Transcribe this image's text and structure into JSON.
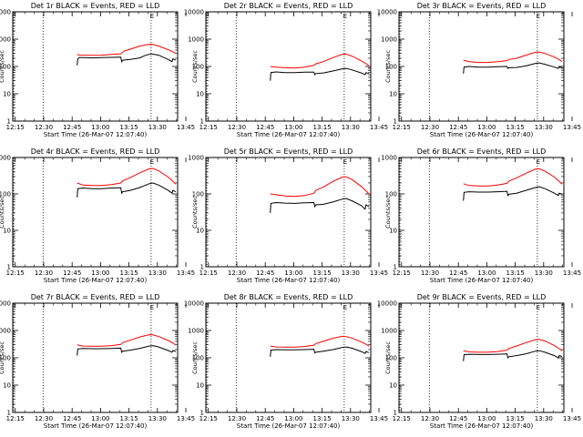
{
  "figure": {
    "background": "#ffffff",
    "axis_color": "#000000",
    "events_color": "#000000",
    "lld_color": "#ff0000"
  },
  "chart_data": [
    {
      "type": "line",
      "title": "Det 1r BLACK = Events, RED = LLD",
      "xlabel": "Start Time (26-Mar-07 12:07:40)",
      "ylabel": "Counts/sec",
      "yscale": "log",
      "ylim": [
        1,
        10000
      ],
      "xlim_minutes": [
        6,
        93
      ],
      "x_ticks": [
        "12:15",
        "12:30",
        "12:45",
        "13:00",
        "13:15",
        "13:30",
        "13:45"
      ],
      "y_ticks": [
        "1",
        "10",
        "100",
        "1000",
        "10000"
      ],
      "vlines_minutes": [
        6.5,
        22,
        79,
        93
      ],
      "marker_label": "E",
      "marker_x_minutes": 79,
      "series": [
        {
          "x": [
            40,
            41,
            43,
            48,
            53,
            58,
            63,
            64,
            64.5,
            68,
            73,
            78,
            80,
            83,
            88,
            91,
            92
          ],
          "values": [
            280,
            260,
            260,
            255,
            260,
            275,
            290,
            330,
            360,
            430,
            560,
            650,
            640,
            560,
            410,
            330,
            300
          ]
        },
        {
          "x": [
            40,
            40.3,
            41,
            43,
            48,
            53,
            58,
            63,
            63.5,
            64,
            68,
            73,
            76,
            79,
            83,
            88,
            90,
            90.5,
            92
          ],
          "values": [
            110,
            190,
            210,
            210,
            205,
            210,
            215,
            220,
            150,
            170,
            180,
            205,
            255,
            290,
            260,
            180,
            150,
            190,
            170
          ]
        }
      ]
    },
    {
      "type": "line",
      "title": "Det 2r BLACK = Events, RED = LLD",
      "xlabel": "Start Time (26-Mar-07 12:07:40)",
      "ylabel": "Counts/sec",
      "yscale": "log",
      "ylim": [
        1,
        10000
      ],
      "xlim_minutes": [
        6,
        93
      ],
      "x_ticks": [
        "12:15",
        "12:30",
        "12:45",
        "13:00",
        "13:15",
        "13:30",
        "13:45"
      ],
      "y_ticks": [
        "1",
        "10",
        "100",
        "1000",
        "10000"
      ],
      "vlines_minutes": [
        6.5,
        22,
        79,
        93
      ],
      "marker_label": "E",
      "marker_x_minutes": 79,
      "series": [
        {
          "x": [
            40,
            43,
            48,
            53,
            58,
            63,
            64,
            68,
            73,
            78,
            80,
            83,
            88,
            91,
            92
          ],
          "values": [
            100,
            95,
            90,
            88,
            95,
            110,
            125,
            150,
            210,
            280,
            285,
            240,
            160,
            120,
            105
          ]
        },
        {
          "x": [
            40,
            40.3,
            43,
            48,
            53,
            58,
            63,
            63.5,
            64,
            68,
            73,
            78,
            80,
            83,
            88,
            90,
            90.5,
            92
          ],
          "values": [
            30,
            60,
            63,
            60,
            60,
            62,
            62,
            50,
            55,
            58,
            68,
            82,
            85,
            75,
            58,
            50,
            60,
            55
          ]
        }
      ]
    },
    {
      "type": "line",
      "title": "Det 3r BLACK = Events, RED = LLD",
      "xlabel": "Start Time (26-Mar-07 12:07:40)",
      "ylabel": "Counts/sec",
      "yscale": "log",
      "ylim": [
        1,
        10000
      ],
      "xlim_minutes": [
        6,
        93
      ],
      "x_ticks": [
        "12:15",
        "12:30",
        "12:45",
        "13:00",
        "13:15",
        "13:30",
        "13:45"
      ],
      "y_ticks": [
        "1",
        "10",
        "100",
        "1000",
        "10000"
      ],
      "vlines_minutes": [
        6.5,
        22,
        79,
        93
      ],
      "marker_label": "E",
      "marker_x_minutes": 79,
      "series": [
        {
          "x": [
            40,
            43,
            48,
            53,
            58,
            63,
            64,
            68,
            73,
            78,
            80,
            83,
            88,
            91,
            92
          ],
          "values": [
            170,
            150,
            140,
            140,
            150,
            165,
            180,
            200,
            260,
            330,
            340,
            300,
            220,
            170,
            150
          ]
        },
        {
          "x": [
            40,
            40.3,
            43,
            48,
            53,
            58,
            63,
            63.5,
            64,
            68,
            73,
            78,
            80,
            83,
            88,
            90,
            90.5,
            92
          ],
          "values": [
            55,
            95,
            100,
            95,
            95,
            98,
            100,
            85,
            90,
            92,
            105,
            130,
            135,
            120,
            95,
            85,
            95,
            90
          ]
        }
      ]
    },
    {
      "type": "line",
      "title": "Det 4r BLACK = Events, RED = LLD",
      "xlabel": "Start Time (26-Mar-07 12:07:40)",
      "ylabel": "Counts/sec",
      "yscale": "log",
      "ylim": [
        1,
        1000
      ],
      "xlim_minutes": [
        6,
        93
      ],
      "x_ticks": [
        "12:15",
        "12:30",
        "12:45",
        "13:00",
        "13:15",
        "13:30",
        "13:45"
      ],
      "y_ticks": [
        "1",
        "10",
        "100",
        "1000"
      ],
      "vlines_minutes": [
        6.5,
        22,
        79,
        93
      ],
      "marker_label": "E",
      "marker_x_minutes": 79,
      "series": [
        {
          "x": [
            40,
            43,
            48,
            53,
            58,
            63,
            64,
            68,
            73,
            78,
            80,
            83,
            88,
            91,
            92
          ],
          "values": [
            200,
            175,
            170,
            170,
            180,
            200,
            230,
            280,
            380,
            490,
            500,
            430,
            290,
            210,
            185
          ]
        },
        {
          "x": [
            40,
            40.3,
            43,
            48,
            53,
            58,
            63,
            63.5,
            64,
            68,
            73,
            78,
            80,
            83,
            88,
            90,
            90.5,
            92
          ],
          "values": [
            80,
            140,
            145,
            140,
            140,
            145,
            148,
            105,
            115,
            125,
            150,
            190,
            200,
            175,
            125,
            105,
            125,
            115
          ]
        }
      ]
    },
    {
      "type": "line",
      "title": "Det 5r BLACK = Events, RED = LLD",
      "xlabel": "Start Time (26-Mar-07 12:07:40)",
      "ylabel": "Counts/sec",
      "yscale": "log",
      "ylim": [
        1,
        1000
      ],
      "xlim_minutes": [
        6,
        93
      ],
      "x_ticks": [
        "12:15",
        "12:30",
        "12:45",
        "13:00",
        "13:15",
        "13:30",
        "13:45"
      ],
      "y_ticks": [
        "1",
        "10",
        "100",
        "1000"
      ],
      "vlines_minutes": [
        6.5,
        22,
        79,
        93
      ],
      "marker_label": "E",
      "marker_x_minutes": 79,
      "series": [
        {
          "x": [
            40,
            43,
            48,
            53,
            58,
            63,
            64,
            68,
            73,
            78,
            80,
            83,
            88,
            91,
            92
          ],
          "values": [
            100,
            95,
            88,
            85,
            90,
            105,
            125,
            155,
            220,
            290,
            295,
            250,
            160,
            115,
            100
          ]
        },
        {
          "x": [
            40,
            40.3,
            43,
            48,
            53,
            58,
            63,
            63.5,
            64,
            68,
            73,
            78,
            80,
            83,
            88,
            90,
            90.5,
            92
          ],
          "values": [
            30,
            55,
            58,
            56,
            55,
            57,
            58,
            45,
            50,
            52,
            60,
            72,
            75,
            65,
            48,
            38,
            50,
            45
          ]
        }
      ]
    },
    {
      "type": "line",
      "title": "Det 6r BLACK = Events, RED = LLD",
      "xlabel": "Start Time (26-Mar-07 12:07:40)",
      "ylabel": "Counts/sec",
      "yscale": "log",
      "ylim": [
        1,
        1000
      ],
      "xlim_minutes": [
        6,
        93
      ],
      "x_ticks": [
        "12:15",
        "12:30",
        "12:45",
        "13:00",
        "13:15",
        "13:30",
        "13:45"
      ],
      "y_ticks": [
        "1",
        "10",
        "100",
        "1000"
      ],
      "vlines_minutes": [
        6.5,
        22,
        79,
        93
      ],
      "marker_label": "E",
      "marker_x_minutes": 79,
      "series": [
        {
          "x": [
            40,
            43,
            48,
            53,
            58,
            63,
            64,
            68,
            73,
            78,
            80,
            83,
            88,
            91,
            92
          ],
          "values": [
            190,
            170,
            165,
            165,
            175,
            195,
            225,
            275,
            370,
            480,
            490,
            420,
            290,
            210,
            185
          ]
        },
        {
          "x": [
            40,
            40.3,
            43,
            48,
            53,
            58,
            63,
            63.5,
            64,
            68,
            73,
            78,
            80,
            83,
            88,
            90,
            90.5,
            92
          ],
          "values": [
            65,
            110,
            115,
            112,
            112,
            115,
            118,
            90,
            98,
            105,
            125,
            150,
            158,
            140,
            105,
            90,
            105,
            98
          ]
        }
      ]
    },
    {
      "type": "line",
      "title": "Det 7r BLACK = Events, RED = LLD",
      "xlabel": "Start Time (26-Mar-07 12:07:40)",
      "ylabel": "Counts/sec",
      "yscale": "log",
      "ylim": [
        1,
        10000
      ],
      "xlim_minutes": [
        6,
        93
      ],
      "x_ticks": [
        "12:15",
        "12:30",
        "12:45",
        "13:00",
        "13:15",
        "13:30",
        "13:45"
      ],
      "y_ticks": [
        "1",
        "10",
        "100",
        "1000",
        "10000"
      ],
      "vlines_minutes": [
        6.5,
        22,
        79,
        93
      ],
      "marker_label": "E",
      "marker_x_minutes": 79,
      "series": [
        {
          "x": [
            40,
            43,
            48,
            53,
            58,
            63,
            64,
            68,
            73,
            78,
            80,
            83,
            88,
            91,
            92
          ],
          "values": [
            300,
            270,
            265,
            265,
            280,
            310,
            360,
            440,
            580,
            700,
            690,
            600,
            430,
            330,
            290
          ]
        },
        {
          "x": [
            40,
            40.3,
            43,
            48,
            53,
            58,
            63,
            63.5,
            64,
            68,
            73,
            78,
            80,
            83,
            88,
            90,
            90.5,
            92
          ],
          "values": [
            120,
            210,
            220,
            215,
            215,
            220,
            225,
            160,
            175,
            190,
            220,
            270,
            280,
            250,
            185,
            160,
            185,
            170
          ]
        }
      ]
    },
    {
      "type": "line",
      "title": "Det 8r BLACK = Events, RED = LLD",
      "xlabel": "Start Time (26-Mar-07 12:07:40)",
      "ylabel": "Counts/sec",
      "yscale": "log",
      "ylim": [
        1,
        10000
      ],
      "xlim_minutes": [
        6,
        93
      ],
      "x_ticks": [
        "12:15",
        "12:30",
        "12:45",
        "13:00",
        "13:15",
        "13:30",
        "13:45"
      ],
      "y_ticks": [
        "1",
        "10",
        "100",
        "1000",
        "10000"
      ],
      "vlines_minutes": [
        6.5,
        22,
        79,
        93
      ],
      "marker_label": "E",
      "marker_x_minutes": 79,
      "series": [
        {
          "x": [
            40,
            43,
            48,
            53,
            58,
            63,
            64,
            68,
            73,
            78,
            80,
            83,
            88,
            91,
            92
          ],
          "values": [
            270,
            250,
            245,
            245,
            260,
            290,
            330,
            400,
            520,
            610,
            600,
            530,
            380,
            300,
            265
          ]
        },
        {
          "x": [
            40,
            40.3,
            43,
            48,
            53,
            58,
            63,
            63.5,
            64,
            68,
            73,
            78,
            80,
            83,
            88,
            90,
            90.5,
            92
          ],
          "values": [
            110,
            190,
            200,
            195,
            195,
            200,
            205,
            150,
            160,
            175,
            200,
            240,
            250,
            225,
            170,
            145,
            170,
            155
          ]
        }
      ]
    },
    {
      "type": "line",
      "title": "Det 9r BLACK = Events, RED = LLD",
      "xlabel": "Start Time (26-Mar-07 12:07:40)",
      "ylabel": "Counts/sec",
      "yscale": "log",
      "ylim": [
        1,
        10000
      ],
      "xlim_minutes": [
        6,
        93
      ],
      "x_ticks": [
        "12:15",
        "12:30",
        "12:45",
        "13:00",
        "13:15",
        "13:30",
        "13:45"
      ],
      "y_ticks": [
        "1",
        "10",
        "100",
        "1000",
        "10000"
      ],
      "vlines_minutes": [
        6.5,
        22,
        79,
        93
      ],
      "marker_label": "E",
      "marker_x_minutes": 79,
      "series": [
        {
          "x": [
            40,
            43,
            48,
            53,
            58,
            63,
            64,
            68,
            73,
            78,
            80,
            83,
            88,
            91,
            92
          ],
          "values": [
            180,
            165,
            160,
            160,
            170,
            190,
            220,
            270,
            360,
            460,
            470,
            410,
            280,
            205,
            180
          ]
        },
        {
          "x": [
            40,
            40.3,
            43,
            48,
            53,
            58,
            63,
            63.5,
            64,
            68,
            73,
            78,
            80,
            83,
            88,
            90,
            90.5,
            92
          ],
          "values": [
            75,
            130,
            135,
            132,
            132,
            135,
            138,
            100,
            110,
            120,
            140,
            175,
            182,
            160,
            120,
            100,
            120,
            112
          ]
        }
      ]
    }
  ]
}
